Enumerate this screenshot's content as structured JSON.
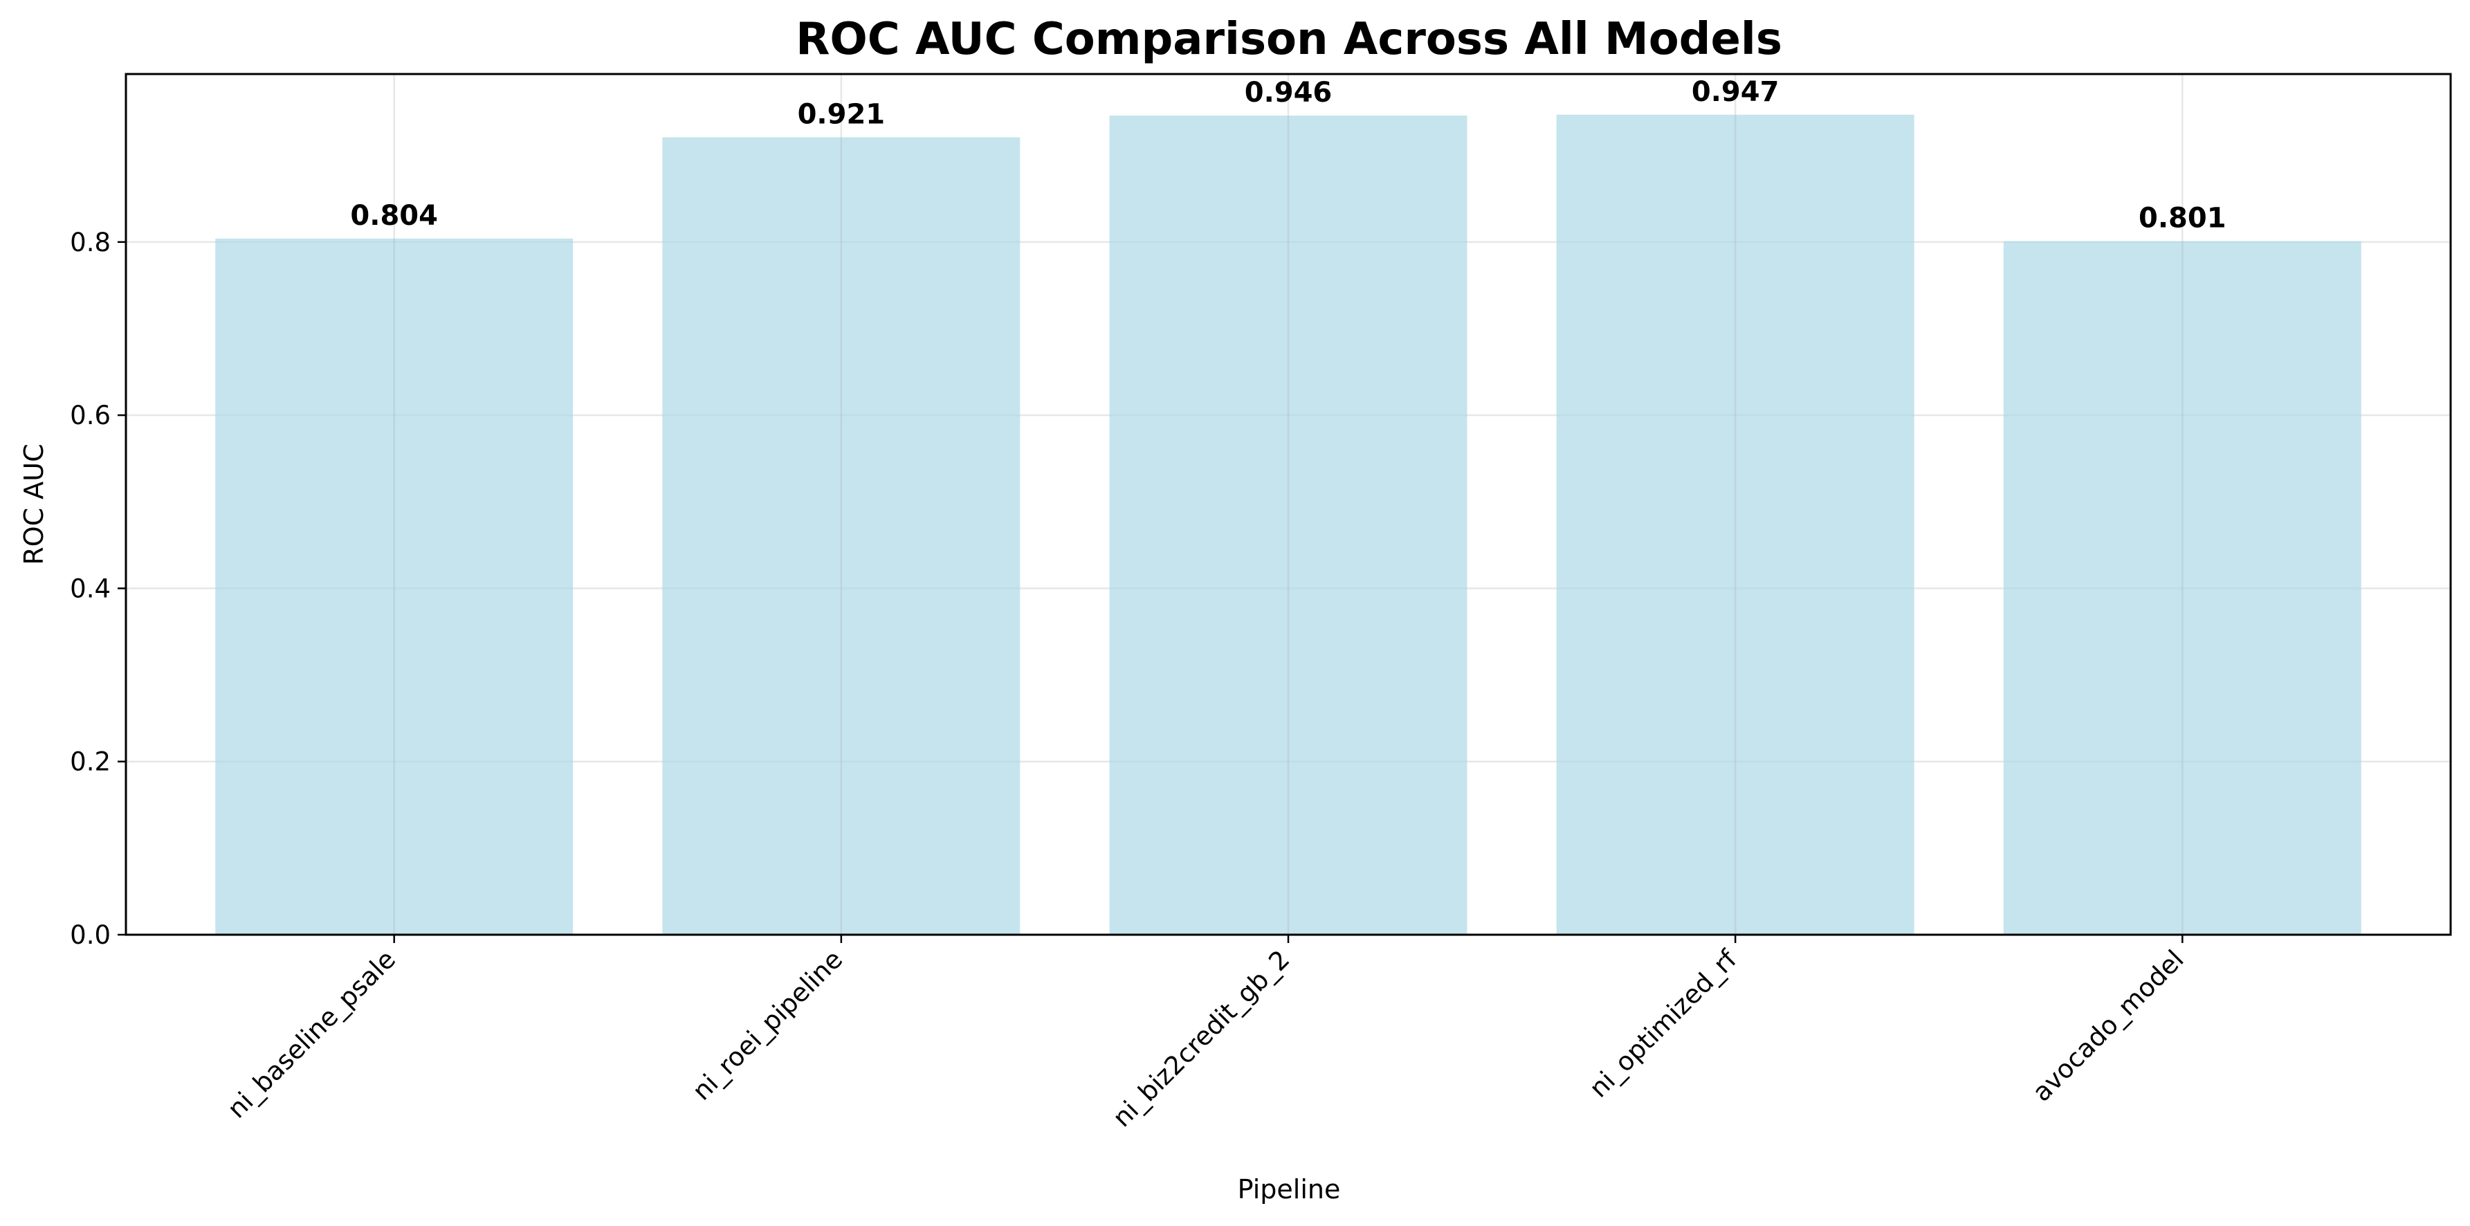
{
  "chart_data": {
    "type": "bar",
    "title": "ROC AUC Comparison Across All Models",
    "xlabel": "Pipeline",
    "ylabel": "ROC AUC",
    "categories": [
      "ni_baseline_psale",
      "ni_roei_pipeline",
      "ni_biz2credit_gb_2",
      "ni_optimized_rf",
      "avocado_model"
    ],
    "values": [
      0.804,
      0.921,
      0.946,
      0.947,
      0.801
    ],
    "value_labels": [
      "0.804",
      "0.921",
      "0.946",
      "0.947",
      "0.801"
    ],
    "ylim": [
      0,
      0.994
    ],
    "yticks": [
      0.0,
      0.2,
      0.4,
      0.6,
      0.8
    ],
    "ytick_labels": [
      "0.0",
      "0.2",
      "0.4",
      "0.6",
      "0.8"
    ],
    "grid": true,
    "bar_color": "#add8e6",
    "bar_alpha": 0.7
  }
}
